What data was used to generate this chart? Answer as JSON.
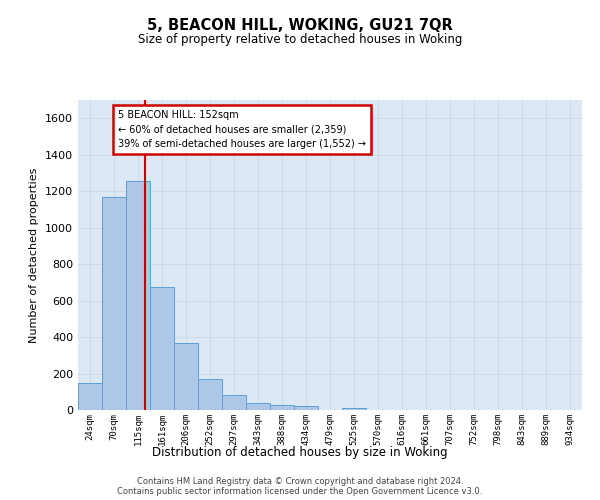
{
  "title": "5, BEACON HILL, WOKING, GU21 7QR",
  "subtitle": "Size of property relative to detached houses in Woking",
  "xlabel": "Distribution of detached houses by size in Woking",
  "ylabel": "Number of detached properties",
  "footnote1": "Contains HM Land Registry data © Crown copyright and database right 2024.",
  "footnote2": "Contains public sector information licensed under the Open Government Licence v3.0.",
  "categories": [
    "24sqm",
    "70sqm",
    "115sqm",
    "161sqm",
    "206sqm",
    "252sqm",
    "297sqm",
    "343sqm",
    "388sqm",
    "434sqm",
    "479sqm",
    "525sqm",
    "570sqm",
    "616sqm",
    "661sqm",
    "707sqm",
    "752sqm",
    "798sqm",
    "843sqm",
    "889sqm",
    "934sqm"
  ],
  "values": [
    148,
    1170,
    1255,
    675,
    370,
    168,
    82,
    37,
    27,
    20,
    0,
    13,
    0,
    0,
    0,
    0,
    0,
    0,
    0,
    0,
    0
  ],
  "bar_color": "#aec6e8",
  "bar_edge_color": "#5a9fd4",
  "grid_color": "#d0d8e8",
  "background_color": "#dde8f5",
  "fig_background": "#ffffff",
  "annotation_line1": "5 BEACON HILL: 152sqm",
  "annotation_line2": "← 60% of detached houses are smaller (2,359)",
  "annotation_line3": "39% of semi-detached houses are larger (1,552) →",
  "annotation_box_color": "#cc0000",
  "ylim": [
    0,
    1700
  ],
  "yticks": [
    0,
    200,
    400,
    600,
    800,
    1000,
    1200,
    1400,
    1600
  ],
  "bin_width": 45,
  "property_sqm": 152,
  "bin_starts_sqm": [
    24,
    70,
    115,
    161,
    206,
    252,
    297,
    343,
    388,
    434,
    479,
    525,
    570,
    616,
    661,
    707,
    752,
    798,
    843,
    889,
    934
  ]
}
